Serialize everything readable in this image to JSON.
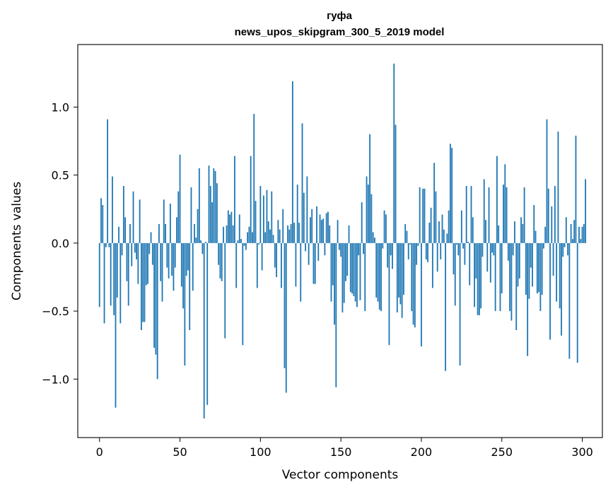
{
  "chart_data": {
    "type": "bar",
    "title_line1": "гуфа",
    "title_line2": "news_upos_skipgram_300_5_2019 model",
    "xlabel": "Vector components",
    "ylabel": "Components values",
    "xlim": [
      -13.5,
      312.5
    ],
    "ylim": [
      -1.43,
      1.46
    ],
    "xticks": [
      0,
      50,
      100,
      150,
      200,
      250,
      300
    ],
    "xtick_labels": [
      "0",
      "50",
      "100",
      "150",
      "200",
      "250",
      "300"
    ],
    "yticks": [
      -1.0,
      -0.5,
      0.0,
      0.5,
      1.0
    ],
    "ytick_labels": [
      "−1.0",
      "−0.5",
      "0.0",
      "0.5",
      "1.0"
    ],
    "bar_color": "#1f77b4",
    "values": [
      -0.47,
      0.33,
      0.28,
      -0.59,
      -0.03,
      0.91,
      -0.03,
      -0.46,
      0.49,
      -0.53,
      -1.21,
      -0.4,
      0.12,
      -0.59,
      -0.09,
      0.42,
      0.19,
      -0.28,
      -0.46,
      0.14,
      -0.17,
      0.38,
      -0.07,
      -0.12,
      -0.3,
      0.32,
      -0.64,
      -0.58,
      -0.58,
      -0.31,
      -0.3,
      -0.08,
      0.08,
      -0.16,
      -0.77,
      -0.82,
      -1.0,
      0.14,
      -0.28,
      -0.43,
      0.32,
      0.14,
      -0.18,
      -0.26,
      0.29,
      -0.24,
      -0.35,
      -0.18,
      0.19,
      0.38,
      0.65,
      -0.32,
      -0.48,
      -0.9,
      -0.24,
      -0.2,
      -0.64,
      0.41,
      -0.35,
      0.14,
      0.04,
      0.25,
      0.55,
      0.02,
      -0.08,
      -1.29,
      0.01,
      -1.19,
      0.57,
      0.42,
      0.3,
      0.55,
      0.53,
      0.44,
      -0.16,
      -0.26,
      -0.28,
      0.12,
      -0.7,
      0.13,
      0.24,
      0.21,
      0.23,
      0.13,
      0.64,
      -0.33,
      0.02,
      0.21,
      0.03,
      -0.75,
      -0.02,
      -0.05,
      0.08,
      0.12,
      0.64,
      0.08,
      0.95,
      0.31,
      -0.33,
      -0.01,
      0.42,
      -0.2,
      0.35,
      0.08,
      0.39,
      0.16,
      0.1,
      0.38,
      0.06,
      -0.18,
      -0.25,
      0.17,
      0.1,
      -0.33,
      0.25,
      -0.92,
      -1.1,
      0.13,
      0.1,
      0.14,
      1.19,
      0.15,
      -0.32,
      0.43,
      0.15,
      -0.43,
      0.88,
      0.37,
      -0.06,
      0.49,
      -0.16,
      0.19,
      0.25,
      -0.3,
      -0.3,
      0.27,
      -0.13,
      0.21,
      0.17,
      0.18,
      -0.09,
      0.22,
      0.23,
      0.13,
      -0.43,
      -0.31,
      -0.6,
      -1.06,
      0.17,
      -0.05,
      -0.1,
      -0.51,
      -0.44,
      -0.28,
      -0.24,
      0.13,
      -0.36,
      -0.37,
      -0.39,
      -0.43,
      -0.47,
      -0.09,
      -0.42,
      0.3,
      -0.08,
      -0.5,
      0.49,
      0.43,
      0.8,
      0.36,
      0.08,
      0.04,
      -0.4,
      -0.43,
      -0.49,
      -0.5,
      -0.04,
      0.24,
      0.21,
      -0.18,
      -0.75,
      -0.09,
      -0.19,
      1.32,
      0.87,
      -0.51,
      -0.4,
      -0.45,
      -0.55,
      -0.38,
      0.14,
      0.09,
      -0.12,
      -0.01,
      -0.5,
      -0.6,
      -0.62,
      -0.16,
      -0.02,
      0.41,
      -0.76,
      0.4,
      0.4,
      -0.12,
      -0.14,
      0.15,
      0.26,
      -0.33,
      0.59,
      0.38,
      -0.21,
      0.16,
      -0.12,
      0.21,
      0.1,
      -0.94,
      0.07,
      0.24,
      0.73,
      0.7,
      -0.23,
      -0.46,
      -0.01,
      -0.09,
      -0.9,
      0.24,
      -0.04,
      -0.16,
      0.42,
      0.01,
      -0.31,
      0.42,
      0.19,
      -0.47,
      -0.26,
      -0.53,
      -0.53,
      -0.48,
      -0.1,
      0.47,
      0.17,
      -0.21,
      0.41,
      -0.29,
      -0.07,
      -0.09,
      -0.5,
      0.64,
      0.13,
      -0.5,
      -0.37,
      0.43,
      0.58,
      0.41,
      -0.13,
      -0.5,
      -0.57,
      -0.09,
      0.16,
      -0.64,
      -0.32,
      -0.26,
      0.19,
      0.14,
      0.41,
      -0.38,
      -0.83,
      -0.41,
      -0.18,
      -0.32,
      0.28,
      0.09,
      -0.37,
      -0.36,
      -0.5,
      -0.38,
      -0.04,
      0.12,
      0.91,
      0.4,
      -0.71,
      0.27,
      -0.24,
      0.42,
      -0.43,
      0.82,
      -0.48,
      -0.68,
      -0.1,
      -0.03,
      0.19,
      -0.09,
      -0.85,
      0.14,
      0.03,
      0.17,
      0.79,
      -0.88,
      0.12,
      0.03,
      0.12,
      0.14,
      0.47
    ]
  }
}
